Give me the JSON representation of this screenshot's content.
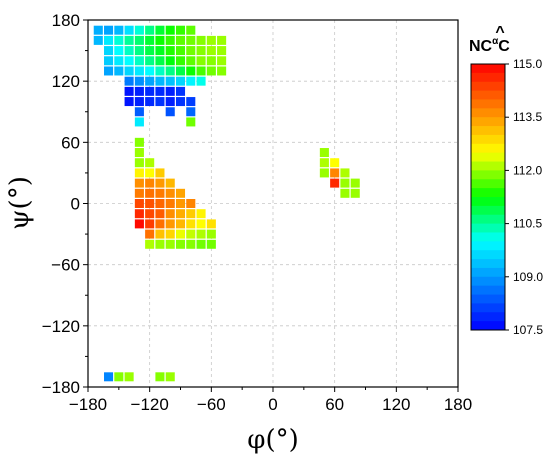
{
  "chart_data": {
    "type": "heatmap",
    "title": "",
    "xlabel": "φ(°)",
    "ylabel": "ψ(°)",
    "xlim": [
      -180,
      180
    ],
    "ylim": [
      -180,
      180
    ],
    "xticks": [
      "−180",
      "−120",
      "−60",
      "0",
      "60",
      "120",
      "180"
    ],
    "yticks": [
      "180",
      "120",
      "60",
      "0",
      "−60",
      "−120",
      "−180"
    ],
    "grid": "dashed",
    "bin_width_deg": 10,
    "colorbar": {
      "label": "NCαC",
      "label_main": "NC",
      "label_sup": "α",
      "label_end": "C",
      "label_accent": "^",
      "min": 107.5,
      "max": 115.0,
      "ticks": [
        "115.0",
        "113.5",
        "112.0",
        "110.5",
        "109.0",
        "107.5"
      ],
      "colors": [
        "#0000ff",
        "#0080ff",
        "#00ffff",
        "#00ff00",
        "#ffff00",
        "#ff8000",
        "#ff0000"
      ]
    },
    "cells": [
      {
        "phi": -170,
        "psi": 170,
        "value": 109.2
      },
      {
        "phi": -160,
        "psi": 170,
        "value": 109.1
      },
      {
        "phi": -150,
        "psi": 170,
        "value": 109.3
      },
      {
        "phi": -140,
        "psi": 170,
        "value": 109.7
      },
      {
        "phi": -130,
        "psi": 170,
        "value": 110.2
      },
      {
        "phi": -120,
        "psi": 170,
        "value": 110.6
      },
      {
        "phi": -110,
        "psi": 170,
        "value": 111.0
      },
      {
        "phi": -100,
        "psi": 170,
        "value": 111.3
      },
      {
        "phi": -90,
        "psi": 170,
        "value": 111.5
      },
      {
        "phi": -80,
        "psi": 170,
        "value": 111.7
      },
      {
        "phi": -170,
        "psi": 160,
        "value": 109.3
      },
      {
        "phi": -160,
        "psi": 160,
        "value": 109.8
      },
      {
        "phi": -150,
        "psi": 160,
        "value": 110.2
      },
      {
        "phi": -140,
        "psi": 160,
        "value": 110.5
      },
      {
        "phi": -130,
        "psi": 160,
        "value": 110.7
      },
      {
        "phi": -120,
        "psi": 160,
        "value": 111.0
      },
      {
        "phi": -110,
        "psi": 160,
        "value": 111.3
      },
      {
        "phi": -100,
        "psi": 160,
        "value": 111.5
      },
      {
        "phi": -90,
        "psi": 160,
        "value": 111.7
      },
      {
        "phi": -80,
        "psi": 160,
        "value": 111.8
      },
      {
        "phi": -70,
        "psi": 160,
        "value": 111.9
      },
      {
        "phi": -60,
        "psi": 160,
        "value": 112.0
      },
      {
        "phi": -50,
        "psi": 160,
        "value": 112.0
      },
      {
        "phi": -160,
        "psi": 150,
        "value": 109.6
      },
      {
        "phi": -150,
        "psi": 150,
        "value": 110.0
      },
      {
        "phi": -140,
        "psi": 150,
        "value": 110.3
      },
      {
        "phi": -130,
        "psi": 150,
        "value": 110.6
      },
      {
        "phi": -120,
        "psi": 150,
        "value": 110.9
      },
      {
        "phi": -110,
        "psi": 150,
        "value": 111.1
      },
      {
        "phi": -100,
        "psi": 150,
        "value": 111.4
      },
      {
        "phi": -90,
        "psi": 150,
        "value": 111.6
      },
      {
        "phi": -80,
        "psi": 150,
        "value": 111.8
      },
      {
        "phi": -70,
        "psi": 150,
        "value": 111.9
      },
      {
        "phi": -60,
        "psi": 150,
        "value": 112.0
      },
      {
        "phi": -50,
        "psi": 150,
        "value": 112.0
      },
      {
        "phi": -160,
        "psi": 140,
        "value": 109.5
      },
      {
        "phi": -150,
        "psi": 140,
        "value": 109.8
      },
      {
        "phi": -140,
        "psi": 140,
        "value": 110.0
      },
      {
        "phi": -130,
        "psi": 140,
        "value": 110.3
      },
      {
        "phi": -120,
        "psi": 140,
        "value": 110.6
      },
      {
        "phi": -110,
        "psi": 140,
        "value": 110.9
      },
      {
        "phi": -100,
        "psi": 140,
        "value": 111.2
      },
      {
        "phi": -90,
        "psi": 140,
        "value": 111.5
      },
      {
        "phi": -80,
        "psi": 140,
        "value": 111.7
      },
      {
        "phi": -70,
        "psi": 140,
        "value": 111.9
      },
      {
        "phi": -60,
        "psi": 140,
        "value": 111.9
      },
      {
        "phi": -50,
        "psi": 140,
        "value": 112.0
      },
      {
        "phi": -160,
        "psi": 130,
        "value": 109.1
      },
      {
        "phi": -150,
        "psi": 130,
        "value": 109.3
      },
      {
        "phi": -140,
        "psi": 130,
        "value": 109.6
      },
      {
        "phi": -130,
        "psi": 130,
        "value": 109.8
      },
      {
        "phi": -120,
        "psi": 130,
        "value": 110.0
      },
      {
        "phi": -110,
        "psi": 130,
        "value": 110.3
      },
      {
        "phi": -100,
        "psi": 130,
        "value": 110.6
      },
      {
        "phi": -90,
        "psi": 130,
        "value": 110.9
      },
      {
        "phi": -80,
        "psi": 130,
        "value": 111.3
      },
      {
        "phi": -70,
        "psi": 130,
        "value": 111.6
      },
      {
        "phi": -60,
        "psi": 130,
        "value": 111.8
      },
      {
        "phi": -50,
        "psi": 130,
        "value": 111.9
      },
      {
        "phi": -140,
        "psi": 120,
        "value": 108.7
      },
      {
        "phi": -130,
        "psi": 120,
        "value": 108.9
      },
      {
        "phi": -120,
        "psi": 120,
        "value": 109.1
      },
      {
        "phi": -110,
        "psi": 120,
        "value": 109.3
      },
      {
        "phi": -100,
        "psi": 120,
        "value": 109.4
      },
      {
        "phi": -90,
        "psi": 120,
        "value": 109.6
      },
      {
        "phi": -80,
        "psi": 120,
        "value": 109.9
      },
      {
        "phi": -70,
        "psi": 120,
        "value": 110.1
      },
      {
        "phi": -140,
        "psi": 110,
        "value": 107.7
      },
      {
        "phi": -130,
        "psi": 110,
        "value": 107.8
      },
      {
        "phi": -120,
        "psi": 110,
        "value": 107.9
      },
      {
        "phi": -110,
        "psi": 110,
        "value": 107.9
      },
      {
        "phi": -100,
        "psi": 110,
        "value": 107.8
      },
      {
        "phi": -90,
        "psi": 110,
        "value": 108.0
      },
      {
        "phi": -140,
        "psi": 100,
        "value": 107.7
      },
      {
        "phi": -130,
        "psi": 100,
        "value": 107.8
      },
      {
        "phi": -120,
        "psi": 100,
        "value": 107.9
      },
      {
        "phi": -110,
        "psi": 100,
        "value": 108.0
      },
      {
        "phi": -100,
        "psi": 100,
        "value": 107.8
      },
      {
        "phi": -90,
        "psi": 100,
        "value": 108.0
      },
      {
        "phi": -80,
        "psi": 100,
        "value": 108.1
      },
      {
        "phi": -130,
        "psi": 90,
        "value": 108.4
      },
      {
        "phi": -100,
        "psi": 90,
        "value": 108.3
      },
      {
        "phi": -80,
        "psi": 90,
        "value": 108.5
      },
      {
        "phi": -130,
        "psi": 80,
        "value": 109.8
      },
      {
        "phi": -80,
        "psi": 80,
        "value": 111.8
      },
      {
        "phi": -130,
        "psi": 60,
        "value": 111.9
      },
      {
        "phi": -130,
        "psi": 50,
        "value": 112.0
      },
      {
        "phi": -130,
        "psi": 40,
        "value": 112.0
      },
      {
        "phi": -120,
        "psi": 40,
        "value": 112.1
      },
      {
        "phi": -130,
        "psi": 30,
        "value": 112.6
      },
      {
        "phi": -120,
        "psi": 30,
        "value": 112.5
      },
      {
        "phi": -110,
        "psi": 30,
        "value": 113.0
      },
      {
        "phi": -130,
        "psi": 20,
        "value": 113.6
      },
      {
        "phi": -120,
        "psi": 20,
        "value": 113.7
      },
      {
        "phi": -110,
        "psi": 20,
        "value": 113.5
      },
      {
        "phi": -100,
        "psi": 20,
        "value": 113.2
      },
      {
        "phi": -130,
        "psi": 10,
        "value": 113.8
      },
      {
        "phi": -120,
        "psi": 10,
        "value": 113.9
      },
      {
        "phi": -110,
        "psi": 10,
        "value": 113.8
      },
      {
        "phi": -100,
        "psi": 10,
        "value": 113.6
      },
      {
        "phi": -90,
        "psi": 10,
        "value": 113.4
      },
      {
        "phi": -130,
        "psi": 0,
        "value": 114.3
      },
      {
        "phi": -120,
        "psi": 0,
        "value": 114.2
      },
      {
        "phi": -110,
        "psi": 0,
        "value": 114.0
      },
      {
        "phi": -100,
        "psi": 0,
        "value": 113.8
      },
      {
        "phi": -90,
        "psi": 0,
        "value": 113.5
      },
      {
        "phi": -80,
        "psi": 0,
        "value": 113.7
      },
      {
        "phi": -130,
        "psi": -10,
        "value": 114.6
      },
      {
        "phi": -120,
        "psi": -10,
        "value": 114.3
      },
      {
        "phi": -110,
        "psi": -10,
        "value": 114.1
      },
      {
        "phi": -100,
        "psi": -10,
        "value": 113.6
      },
      {
        "phi": -90,
        "psi": -10,
        "value": 113.3
      },
      {
        "phi": -80,
        "psi": -10,
        "value": 113.0
      },
      {
        "phi": -70,
        "psi": -10,
        "value": 112.6
      },
      {
        "phi": -130,
        "psi": -20,
        "value": 114.9
      },
      {
        "phi": -120,
        "psi": -20,
        "value": 114.4
      },
      {
        "phi": -110,
        "psi": -20,
        "value": 113.9
      },
      {
        "phi": -100,
        "psi": -20,
        "value": 113.5
      },
      {
        "phi": -90,
        "psi": -20,
        "value": 113.2
      },
      {
        "phi": -80,
        "psi": -20,
        "value": 112.8
      },
      {
        "phi": -70,
        "psi": -20,
        "value": 112.5
      },
      {
        "phi": -60,
        "psi": -20,
        "value": 112.8
      },
      {
        "phi": -120,
        "psi": -30,
        "value": 113.9
      },
      {
        "phi": -110,
        "psi": -30,
        "value": 113.1
      },
      {
        "phi": -100,
        "psi": -30,
        "value": 112.9
      },
      {
        "phi": -90,
        "psi": -30,
        "value": 112.4
      },
      {
        "phi": -80,
        "psi": -30,
        "value": 112.2
      },
      {
        "phi": -70,
        "psi": -30,
        "value": 112.1
      },
      {
        "phi": -60,
        "psi": -30,
        "value": 112.0
      },
      {
        "phi": -120,
        "psi": -40,
        "value": 112.1
      },
      {
        "phi": -110,
        "psi": -40,
        "value": 112.0
      },
      {
        "phi": -100,
        "psi": -40,
        "value": 112.0
      },
      {
        "phi": -90,
        "psi": -40,
        "value": 111.9
      },
      {
        "phi": -80,
        "psi": -40,
        "value": 111.9
      },
      {
        "phi": -70,
        "psi": -40,
        "value": 111.8
      },
      {
        "phi": -60,
        "psi": -40,
        "value": 111.8
      },
      {
        "phi": 50,
        "psi": 50,
        "value": 112.0
      },
      {
        "phi": 50,
        "psi": 40,
        "value": 112.1
      },
      {
        "phi": 60,
        "psi": 40,
        "value": 112.5
      },
      {
        "phi": 50,
        "psi": 30,
        "value": 112.0
      },
      {
        "phi": 60,
        "psi": 30,
        "value": 113.7
      },
      {
        "phi": 70,
        "psi": 30,
        "value": 112.1
      },
      {
        "phi": 60,
        "psi": 20,
        "value": 114.6
      },
      {
        "phi": 70,
        "psi": 20,
        "value": 112.0
      },
      {
        "phi": 80,
        "psi": 20,
        "value": 112.0
      },
      {
        "phi": 70,
        "psi": 10,
        "value": 112.0
      },
      {
        "phi": 80,
        "psi": 10,
        "value": 112.0
      },
      {
        "phi": -160,
        "psi": -170,
        "value": 108.8
      },
      {
        "phi": -150,
        "psi": -170,
        "value": 111.9
      },
      {
        "phi": -140,
        "psi": -170,
        "value": 112.0
      },
      {
        "phi": -110,
        "psi": -170,
        "value": 111.9
      },
      {
        "phi": -100,
        "psi": -170,
        "value": 112.0
      }
    ]
  }
}
